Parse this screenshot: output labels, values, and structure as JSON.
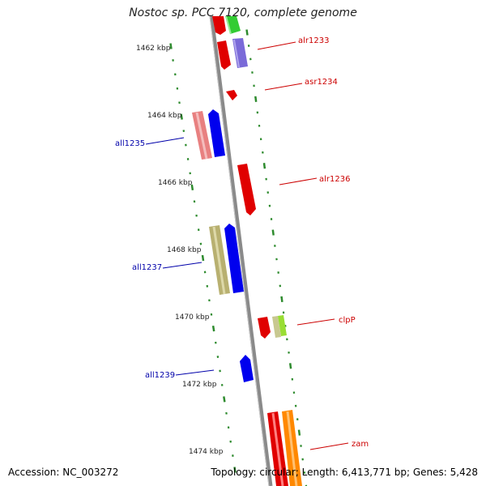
{
  "title": "Nostoc sp. PCC 7120, complete genome",
  "accession": "Accession: NC_003272",
  "summary": "Topology: circular; Length: 6,413,771 bp; Genes: 5,428",
  "colors": {
    "backbone": "#8a8a8a",
    "ticks": "#2e8b2e",
    "forward_label": "#cc0000",
    "reverse_label": "#0000aa"
  },
  "scale_ticks": [
    "1462 kbp",
    "1464 kbp",
    "1466 kbp",
    "1468 kbp",
    "1470 kbp",
    "1472 kbp",
    "1474 kbp"
  ],
  "genes": [
    {
      "label": "alr1233",
      "strand": "forward"
    },
    {
      "label": "asr1234",
      "strand": "forward"
    },
    {
      "label": "all1235",
      "strand": "reverse"
    },
    {
      "label": "alr1236",
      "strand": "forward"
    },
    {
      "label": "all1237",
      "strand": "reverse"
    },
    {
      "label": "clpP",
      "strand": "forward"
    },
    {
      "label": "all1239",
      "strand": "reverse"
    },
    {
      "label": "zam",
      "strand": "forward"
    }
  ]
}
